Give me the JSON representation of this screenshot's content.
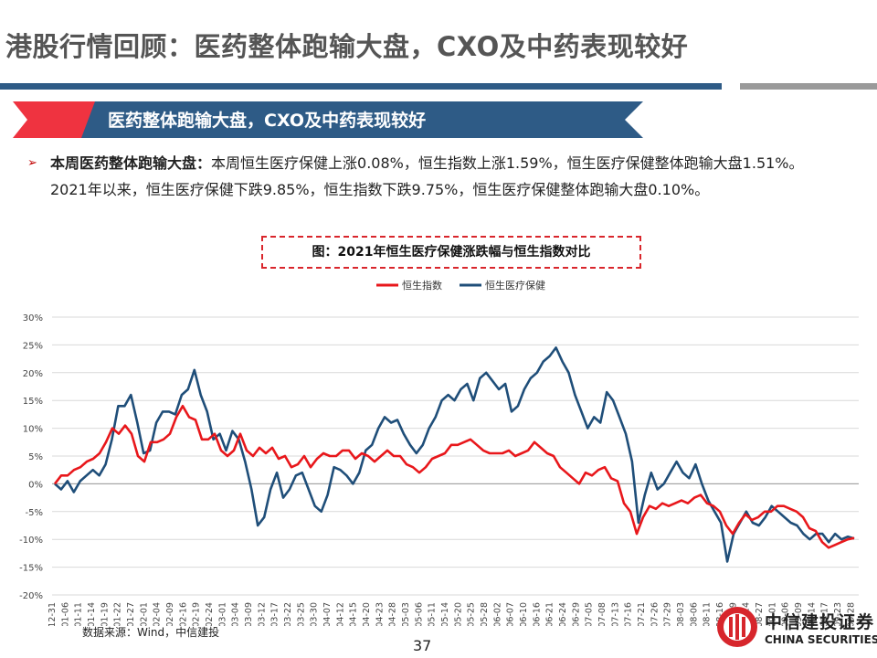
{
  "header": {
    "title": "港股行情回顾：医药整体跑输大盘，CXO及中药表现较好"
  },
  "banner": {
    "text": "医药整体跑输大盘，CXO及中药表现较好"
  },
  "bullet": {
    "lead": "本周医药整体跑输大盘：",
    "body": "本周恒生医疗保健上涨0.08%，恒生指数上涨1.59%，恒生医疗保健整体跑输大盘1.51%。2021年以来，恒生医疗保健下跌9.85%，恒生指数下跌9.75%，恒生医疗保健整体跑输大盘0.10%。"
  },
  "caption": "图：2021年恒生医疗保健涨跌幅与恒生指数对比",
  "source": "数据来源：Wind，中信建投",
  "page_number": "37",
  "logo": {
    "cn": "中信建投证券",
    "en": "CHINA SECURITIES"
  },
  "colors": {
    "accent_blue": "#2e5b86",
    "accent_red": "#e8392c",
    "hsi": "#e8171b",
    "hshc": "#1f4e79"
  },
  "chart_data": {
    "type": "line",
    "title": "",
    "ylim": [
      -20,
      30
    ],
    "yticks": [
      "30%",
      "25%",
      "20%",
      "15%",
      "10%",
      "5%",
      "0%",
      "-5%",
      "-10%",
      "-15%",
      "-20%"
    ],
    "legend_position": "top-center",
    "x_tick_labels": [
      "2020-12-31",
      "2021-01-06",
      "2021-01-11",
      "2021-01-14",
      "2021-01-19",
      "2021-01-22",
      "2021-01-27",
      "2021-02-01",
      "2021-02-04",
      "2021-02-09",
      "2021-02-16",
      "2021-02-19",
      "2021-02-24",
      "2021-03-01",
      "2021-03-04",
      "2021-03-09",
      "2021-03-12",
      "2021-03-17",
      "2021-03-22",
      "2021-03-25",
      "2021-03-30",
      "2021-04-07",
      "2021-04-12",
      "2021-04-15",
      "2021-04-20",
      "2021-04-23",
      "2021-04-28",
      "2021-05-03",
      "2021-05-06",
      "2021-05-11",
      "2021-05-14",
      "2021-05-20",
      "2021-05-25",
      "2021-05-28",
      "2021-06-02",
      "2021-06-07",
      "2021-06-10",
      "2021-06-16",
      "2021-06-21",
      "2021-06-24",
      "2021-06-29",
      "2021-07-05",
      "2021-07-08",
      "2021-07-13",
      "2021-07-16",
      "2021-07-21",
      "2021-07-26",
      "2021-07-29",
      "2021-08-03",
      "2021-08-06",
      "2021-08-11",
      "2021-08-16",
      "2021-08-19",
      "2021-08-24",
      "2021-08-27",
      "2021-09-01",
      "2021-09-06",
      "2021-09-09",
      "2021-09-14",
      "2021-09-17",
      "2021-09-23",
      "2021-09-28"
    ],
    "series": [
      {
        "name": "恒生指数",
        "color": "#e8171b",
        "values": [
          0,
          1.5,
          1.5,
          2.5,
          3,
          4,
          4.5,
          5.5,
          7.5,
          10,
          9,
          10.5,
          9,
          5,
          4,
          7.5,
          7.5,
          8,
          9,
          12,
          14,
          12,
          11.5,
          8,
          8,
          9,
          6,
          5,
          6,
          9,
          6,
          5,
          6.5,
          5.5,
          6.5,
          4.5,
          5,
          3,
          3.5,
          5,
          3,
          4.5,
          5.5,
          5,
          5,
          6,
          6,
          4.5,
          5.5,
          5,
          4,
          5,
          6,
          5,
          5,
          3.5,
          3,
          2,
          3,
          4.5,
          5,
          5.5,
          7,
          7,
          7.5,
          8,
          7,
          6,
          5.5,
          5.5,
          5.5,
          6,
          5,
          5.5,
          6,
          7.5,
          6.5,
          5.5,
          5,
          3,
          2,
          1,
          0,
          2,
          1.5,
          2.5,
          3,
          1,
          0.5,
          -3.5,
          -5,
          -9,
          -6,
          -4,
          -4.5,
          -3.5,
          -4,
          -3.5,
          -3,
          -3.5,
          -2.5,
          -2,
          -3.5,
          -4,
          -5,
          -7.5,
          -9,
          -7,
          -5.5,
          -6.5,
          -6,
          -5,
          -5,
          -4,
          -4,
          -4.5,
          -5,
          -6,
          -8,
          -8.5,
          -10.5,
          -11.5,
          -11,
          -10.5,
          -10,
          -9.75
        ]
      },
      {
        "name": "恒生医疗保健",
        "color": "#1f4e79",
        "values": [
          0,
          -1,
          0.5,
          -1.5,
          0.5,
          1.5,
          2.5,
          1.5,
          3.5,
          8,
          14,
          14,
          16,
          11,
          5.5,
          6,
          11,
          13,
          13,
          12.5,
          16,
          17,
          20.5,
          16,
          13,
          8,
          9,
          6,
          9.5,
          8,
          4,
          -1,
          -7.5,
          -6,
          -1,
          2,
          -2.5,
          -1,
          1.5,
          2,
          -1,
          -4,
          -5,
          -2,
          3,
          2.5,
          1.5,
          0,
          2,
          6,
          7,
          10,
          12,
          11,
          11.5,
          9,
          7,
          5.5,
          7,
          10,
          12,
          15,
          16,
          15,
          17,
          18,
          15,
          19,
          20,
          18.5,
          17,
          18,
          13,
          14,
          17,
          19,
          20,
          22,
          23,
          24.5,
          22,
          20,
          16,
          13,
          10,
          12,
          11,
          16.5,
          15,
          12,
          9,
          4,
          -7,
          -2,
          2,
          -1,
          0,
          2,
          4,
          2,
          1,
          3.5,
          0,
          -3,
          -5,
          -7,
          -14,
          -9,
          -7,
          -5,
          -7,
          -7.5,
          -6,
          -4,
          -5,
          -6,
          -7,
          -7.5,
          -9,
          -10,
          -9,
          -9,
          -10.5,
          -9,
          -10,
          -9.5,
          -9.85
        ]
      }
    ]
  }
}
